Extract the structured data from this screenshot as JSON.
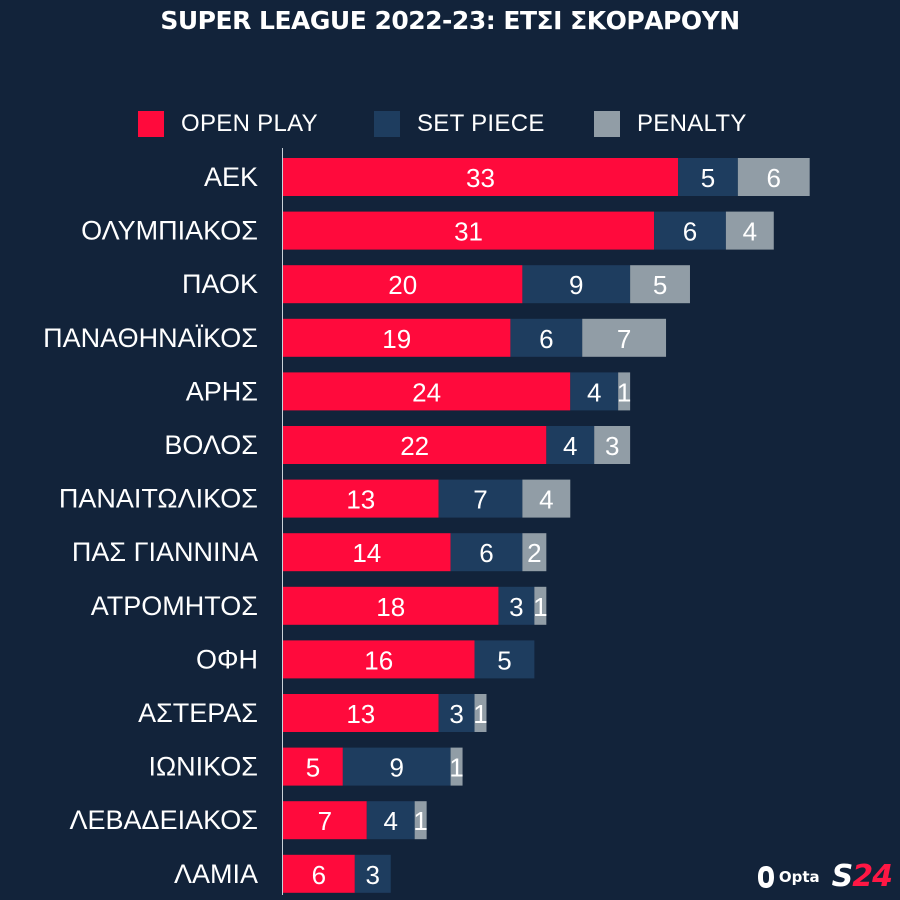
{
  "chart_data": {
    "type": "bar",
    "orientation": "horizontal",
    "stacked": true,
    "title": "SUPER LEAGUE 2022-23: ΕΤΣΙ ΣΚΟΡΑΡΟΥΝ",
    "categories": [
      "ΑΕΚ",
      "ΟΛΥΜΠΙΑΚΟΣ",
      "ΠΑΟΚ",
      "ΠΑΝΑΘΗΝΑΪΚΟΣ",
      "ΑΡΗΣ",
      "ΒΟΛΟΣ",
      "ΠΑΝΑΙΤΩΛΙΚΟΣ",
      "ΠΑΣ ΓΙΑΝΝΙΝΑ",
      "ΑΤΡΟΜΗΤΟΣ",
      "ΟΦΗ",
      "ΑΣΤΕΡΑΣ",
      "ΙΩΝΙΚΟΣ",
      "ΛΕΒΑΔΕΙΑΚΟΣ",
      "ΛΑΜΙΑ"
    ],
    "series": [
      {
        "name": "OPEN PLAY",
        "color": "#ff0a3c",
        "values": [
          33,
          31,
          20,
          19,
          24,
          22,
          13,
          14,
          18,
          16,
          13,
          5,
          7,
          6
        ]
      },
      {
        "name": "SET PIECE",
        "color": "#1e3d5f",
        "values": [
          5,
          6,
          9,
          6,
          4,
          4,
          7,
          6,
          3,
          5,
          3,
          9,
          4,
          3
        ]
      },
      {
        "name": "PENALTY",
        "color": "#919da6",
        "values": [
          6,
          4,
          5,
          7,
          1,
          3,
          4,
          2,
          1,
          0,
          1,
          1,
          1,
          0
        ]
      }
    ],
    "xlim": [
      0,
      51
    ],
    "legend": "top"
  },
  "branding": {
    "opta": "Opta",
    "s24_s": "S",
    "s24_num": "24"
  }
}
